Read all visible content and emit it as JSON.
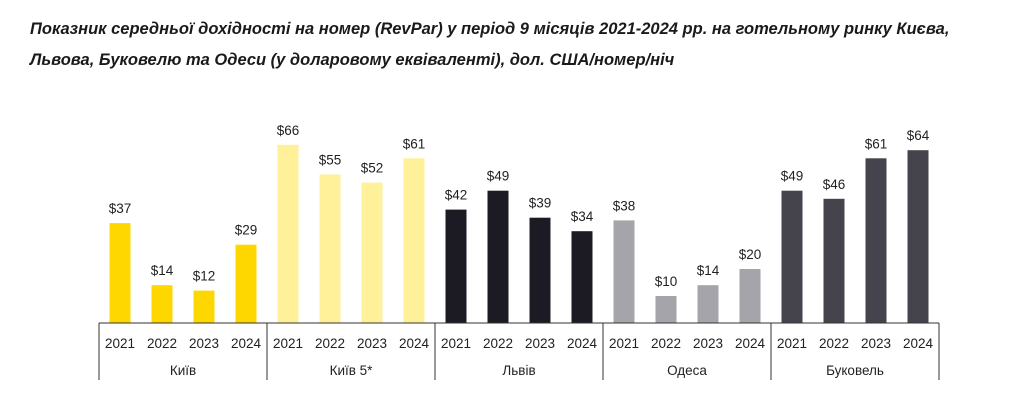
{
  "title": "Показник середньої дохідності на номер (RevPar) у період 9 місяців 2021-2024 рр. на готельному ринку Києва, Львова, Буковелю та Одеси (у доларовому еквіваленті), дол. США/номер/ніч",
  "chart_data": {
    "type": "bar",
    "title": "Показник середньої дохідності на номер (RevPar) у період 9 місяців 2021-2024 рр. на готельному ринку Києва, Львова, Буковелю та Одеси (у доларовому еквіваленті), дол. США/номер/ніч",
    "grid": false,
    "legend": "none",
    "ylim": [
      0,
      70
    ],
    "groups": [
      {
        "name": "Київ",
        "color": "#FFD700",
        "bars": [
          {
            "x": "2021",
            "value": 37,
            "label": "$37"
          },
          {
            "x": "2022",
            "value": 14,
            "label": "$14"
          },
          {
            "x": "2023",
            "value": 12,
            "label": "$12"
          },
          {
            "x": "2024",
            "value": 29,
            "label": "$29"
          }
        ]
      },
      {
        "name": "Київ 5*",
        "color": "#FFF09A",
        "bars": [
          {
            "x": "2021",
            "value": 66,
            "label": "$66"
          },
          {
            "x": "2022",
            "value": 55,
            "label": "$55"
          },
          {
            "x": "2023",
            "value": 52,
            "label": "$52"
          },
          {
            "x": "2024",
            "value": 61,
            "label": "$61"
          }
        ]
      },
      {
        "name": "Львів",
        "color": "#1C1B24",
        "bars": [
          {
            "x": "2021",
            "value": 42,
            "label": "$42"
          },
          {
            "x": "2022",
            "value": 49,
            "label": "$49"
          },
          {
            "x": "2023",
            "value": 39,
            "label": "$39"
          },
          {
            "x": "2024",
            "value": 34,
            "label": "$34"
          }
        ]
      },
      {
        "name": "Одеса",
        "color": "#A5A4AA",
        "bars": [
          {
            "x": "2021",
            "value": 38,
            "label": "$38"
          },
          {
            "x": "2022",
            "value": 10,
            "label": "$10"
          },
          {
            "x": "2023",
            "value": 14,
            "label": "$14"
          },
          {
            "x": "2024",
            "value": 20,
            "label": "$20"
          }
        ]
      },
      {
        "name": "Буковель",
        "color": "#45444C",
        "bars": [
          {
            "x": "2021",
            "value": 49,
            "label": "$49"
          },
          {
            "x": "2022",
            "value": 46,
            "label": "$46"
          },
          {
            "x": "2023",
            "value": 61,
            "label": "$61"
          },
          {
            "x": "2024",
            "value": 64,
            "label": "$64"
          }
        ]
      }
    ]
  }
}
